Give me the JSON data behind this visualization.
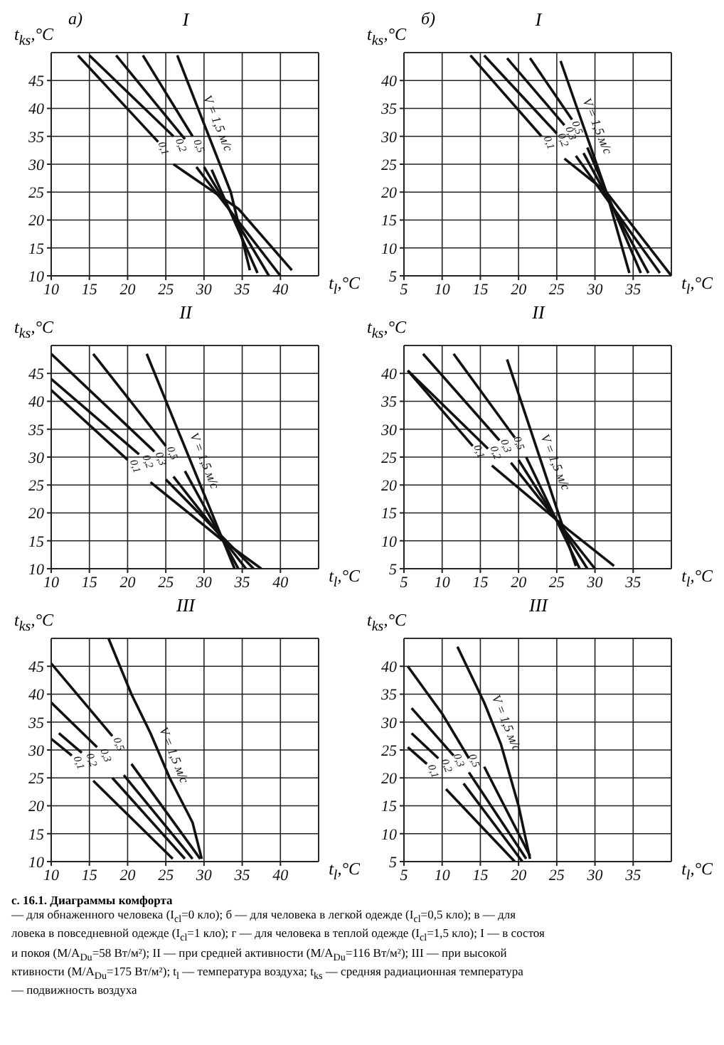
{
  "chart_data": [
    {
      "type": "line",
      "title": "I",
      "subtitle": "а)",
      "xlabel": "t$_{l}$,°C",
      "ylabel": "t$_{ks}$,°C",
      "xlim": [
        10,
        45
      ],
      "xticks": [
        10,
        15,
        20,
        25,
        30,
        35,
        40
      ],
      "ylim": [
        10,
        50
      ],
      "yticks": [
        10,
        15,
        20,
        25,
        30,
        35,
        40,
        45
      ],
      "grid": true,
      "series": [
        {
          "name": "0,1",
          "color": "#111111",
          "x": [
            13.5,
            24,
            null,
            26,
            34.5,
            41.5
          ],
          "values": [
            49.5,
            34,
            null,
            30,
            22,
            11
          ]
        },
        {
          "name": "0,2",
          "color": "#111111",
          "x": [
            15,
            26,
            null,
            29,
            40
          ],
          "values": [
            49.5,
            35,
            null,
            29.5,
            10
          ]
        },
        {
          "color": "#111111",
          "x": [
            18.5,
            27.5,
            null,
            30,
            38.5
          ],
          "values": [
            49.5,
            34.5,
            null,
            29.5,
            10
          ]
        },
        {
          "name": "0,5",
          "color": "#111111",
          "x": [
            22,
            28.5,
            null,
            31,
            37
          ],
          "values": [
            49.5,
            35,
            null,
            29,
            10.5
          ]
        },
        {
          "name": "V = 1,5 м/с",
          "color": "#111111",
          "x": [
            26.5,
            33.5,
            36
          ],
          "values": [
            49.5,
            25,
            11
          ]
        }
      ]
    },
    {
      "type": "line",
      "title": "I",
      "subtitle": "б)",
      "xlabel": "t$_{l}$,°C",
      "ylabel": "t$_{ks}$,°C",
      "xlim": [
        5,
        40
      ],
      "xticks": [
        5,
        10,
        15,
        20,
        25,
        30,
        35
      ],
      "ylim": [
        5,
        45
      ],
      "yticks": [
        5,
        10,
        15,
        20,
        25,
        30,
        35,
        40
      ],
      "grid": true,
      "series": [
        {
          "name": "0,1",
          "color": "#111111",
          "x": [
            13.7,
            23,
            null,
            26,
            31.5,
            40
          ],
          "values": [
            44.5,
            30,
            null,
            26,
            20,
            5
          ]
        },
        {
          "name": "0,2",
          "color": "#111111",
          "x": [
            15.5,
            25,
            null,
            27.5,
            38.5
          ],
          "values": [
            44.5,
            30.5,
            null,
            26.5,
            5.5
          ]
        },
        {
          "name": "0,3",
          "color": "#111111",
          "x": [
            18.5,
            26,
            null,
            28.5,
            37
          ],
          "values": [
            44,
            32,
            null,
            27,
            5.5
          ]
        },
        {
          "name": "0,5",
          "color": "#111111",
          "x": [
            21.5,
            27,
            null,
            29,
            36
          ],
          "values": [
            44,
            33,
            null,
            28,
            5.5
          ]
        },
        {
          "name": "V = 1,5 м/с",
          "color": "#111111",
          "x": [
            25.5,
            31.5,
            34.5
          ],
          "values": [
            43.5,
            20,
            5.5
          ]
        }
      ]
    },
    {
      "type": "line",
      "title": "II",
      "xlabel": "t$_{l}$,°C",
      "ylabel": "t$_{ks}$,°C",
      "xlim": [
        10,
        45
      ],
      "xticks": [
        10,
        15,
        20,
        25,
        30,
        35,
        40
      ],
      "ylim": [
        10,
        50
      ],
      "yticks": [
        10,
        15,
        20,
        25,
        30,
        35,
        40,
        45
      ],
      "grid": true,
      "series": [
        {
          "name": "0,1",
          "color": "#111111",
          "x": [
            10,
            20,
            null,
            23,
            32.5,
            37.5
          ],
          "values": [
            42,
            29.5,
            null,
            25.5,
            15,
            10
          ]
        },
        {
          "name": "0,2",
          "color": "#111111",
          "x": [
            10,
            21.5,
            null,
            25,
            36.5
          ],
          "values": [
            44,
            30.5,
            null,
            26,
            10
          ]
        },
        {
          "name": "0,3",
          "color": "#111111",
          "x": [
            10,
            23.5,
            null,
            26,
            35.5
          ],
          "values": [
            48.5,
            31,
            null,
            26.5,
            10
          ]
        },
        {
          "name": "0,5",
          "color": "#111111",
          "x": [
            15.5,
            25,
            null,
            27.5,
            34.5
          ],
          "values": [
            48.5,
            32,
            null,
            27.5,
            10
          ]
        },
        {
          "name": "V = 1,5 м/с",
          "color": "#111111",
          "x": [
            22.5,
            34
          ],
          "values": [
            48.5,
            10
          ]
        }
      ]
    },
    {
      "type": "line",
      "title": "II",
      "xlabel": "t$_{l}$,°C",
      "ylabel": "t$_{ks}$,°C",
      "xlim": [
        5,
        40
      ],
      "xticks": [
        5,
        10,
        15,
        20,
        25,
        30,
        35
      ],
      "ylim": [
        5,
        45
      ],
      "yticks": [
        5,
        10,
        15,
        20,
        25,
        30,
        35,
        40
      ],
      "grid": true,
      "series": [
        {
          "name": "0,1",
          "color": "#111111",
          "x": [
            5.5,
            14,
            null,
            16.5,
            26.5,
            32.5
          ],
          "values": [
            40.5,
            27,
            null,
            23.5,
            12,
            5.5
          ]
        },
        {
          "name": "0,2",
          "color": "#111111",
          "x": [
            5.5,
            16,
            null,
            19,
            30
          ],
          "values": [
            40.5,
            26.5,
            null,
            24,
            5
          ]
        },
        {
          "name": "0,3",
          "color": "#111111",
          "x": [
            7.5,
            17.5,
            null,
            20,
            29
          ],
          "values": [
            43.5,
            28,
            null,
            24.5,
            5
          ]
        },
        {
          "name": "0,5",
          "color": "#111111",
          "x": [
            11.5,
            19.5,
            null,
            21,
            28
          ],
          "values": [
            43.5,
            28.5,
            null,
            25,
            5
          ]
        },
        {
          "name": "V = 1,5 м/с",
          "color": "#111111",
          "x": [
            18.5,
            27.5
          ],
          "values": [
            42.5,
            5.5
          ]
        }
      ]
    },
    {
      "type": "line",
      "title": "III",
      "xlabel": "t$_{l}$,°C",
      "ylabel": "t$_{ks}$,°C",
      "xlim": [
        10,
        45
      ],
      "xticks": [
        10,
        15,
        20,
        25,
        30,
        35,
        40
      ],
      "ylim": [
        10,
        50
      ],
      "yticks": [
        10,
        15,
        20,
        25,
        30,
        35,
        40,
        45
      ],
      "grid": true,
      "series": [
        {
          "name": "0,1",
          "color": "#111111",
          "x": [
            10,
            12.7,
            null,
            15.5,
            25.9
          ],
          "values": [
            32,
            29,
            null,
            24.5,
            10.5
          ]
        },
        {
          "name": "0,2",
          "color": "#111111",
          "x": [
            11,
            14,
            null,
            18,
            27.5
          ],
          "values": [
            33,
            29.5,
            null,
            25,
            10.5
          ]
        },
        {
          "name": "0,3",
          "color": "#111111",
          "x": [
            10,
            16,
            null,
            19.5,
            28.5
          ],
          "values": [
            38.5,
            30.5,
            null,
            25.5,
            10.5
          ]
        },
        {
          "name": "0,5",
          "color": "#111111",
          "x": [
            10,
            18,
            null,
            20.5,
            29.5
          ],
          "values": [
            45.5,
            32.5,
            null,
            27.5,
            10.5
          ]
        },
        {
          "name": "V = 1,5 м/с",
          "color": "#111111",
          "x": [
            17.5,
            20.5,
            23,
            25.5,
            28.5,
            29.7
          ],
          "values": [
            50,
            40,
            33,
            25,
            17,
            10.5
          ]
        }
      ]
    },
    {
      "type": "line",
      "title": "III",
      "xlabel": "t$_{l}$,°C",
      "ylabel": "t$_{ks}$,°C",
      "xlim": [
        5,
        40
      ],
      "xticks": [
        5,
        10,
        15,
        20,
        25,
        30,
        35
      ],
      "ylim": [
        5,
        45
      ],
      "yticks": [
        5,
        10,
        15,
        20,
        25,
        30,
        35,
        40
      ],
      "grid": true,
      "series": [
        {
          "name": "0,1",
          "color": "#111111",
          "x": [
            5.5,
            8,
            null,
            10.5,
            19.5
          ],
          "values": [
            25.5,
            22.5,
            null,
            18,
            5
          ]
        },
        {
          "name": "0,2",
          "color": "#111111",
          "x": [
            6,
            9.5,
            null,
            12.8,
            20.5
          ],
          "values": [
            28,
            23.5,
            null,
            19,
            5
          ]
        },
        {
          "name": "0,3",
          "color": "#111111",
          "x": [
            6,
            11.5,
            null,
            13.5,
            21
          ],
          "values": [
            32.5,
            24,
            null,
            21,
            5.5
          ]
        },
        {
          "name": "0,5",
          "color": "#111111",
          "x": [
            5.5,
            10,
            13.5,
            null,
            15.5,
            21.5
          ],
          "values": [
            40,
            31.5,
            23.5,
            null,
            22,
            6
          ]
        },
        {
          "name": "V = 1,5 м/с",
          "color": "#111111",
          "x": [
            12,
            15.5,
            17.7,
            20,
            21.5
          ],
          "values": [
            43.5,
            33.5,
            26,
            15,
            5.5
          ]
        }
      ],
      "annotations": [
        "с. 16.1. Диаграммы комфорта",
        "— для обнаженного человека (I$_{cl}$=0 кло); б — для человека в легкой одежде (I$_{cl}$=0,5 кло); в — для",
        "ловека в повседневной одежде (I$_{cl}$=1 кло); г — для человека в теплой одежде (I$_{cl}$=1,5 кло); I — в состоя",
        "и покоя (M/A$_{Du}$=58 Вт/м²); II — при средней активности (M/A$_{Du}$=116 Вт/м²); III — при высокой",
        "ктивности (M/A$_{Du}$=175 Вт/м²); t$_{l}$ — температура воздуха; t$_{ks}$ — средняя радиационная температура",
        "— подвижность воздуха"
      ]
    }
  ]
}
